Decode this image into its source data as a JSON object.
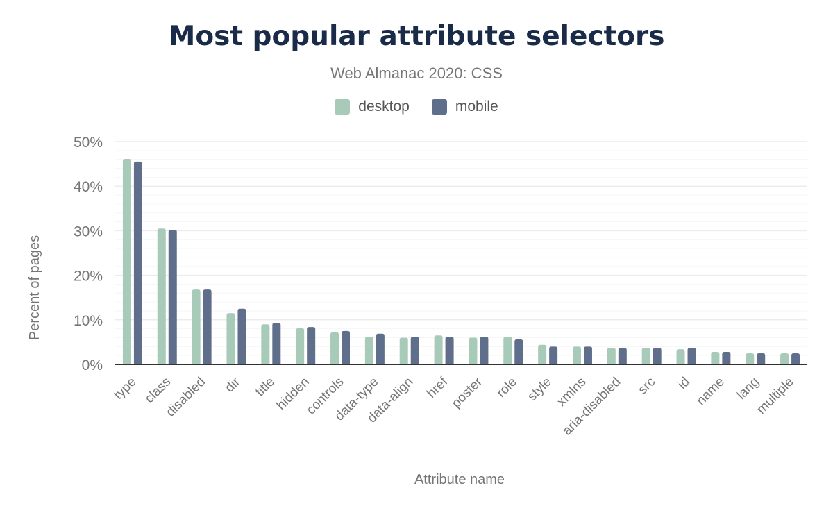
{
  "chart_data": {
    "type": "bar",
    "title": "Most popular attribute selectors",
    "subtitle": "Web Almanac 2020: CSS",
    "xlabel": "Attribute name",
    "ylabel": "Percent of pages",
    "ylim": [
      0,
      50
    ],
    "yticks": [
      "0%",
      "10%",
      "20%",
      "30%",
      "40%",
      "50%"
    ],
    "grid": true,
    "legend_position": "top",
    "categories": [
      "type",
      "class",
      "disabled",
      "dir",
      "title",
      "hidden",
      "controls",
      "data-type",
      "data-align",
      "href",
      "poster",
      "role",
      "style",
      "xmlns",
      "aria-disabled",
      "src",
      "id",
      "name",
      "lang",
      "multiple"
    ],
    "series": [
      {
        "name": "desktop",
        "color": "#a8cbb9",
        "values": [
          46.1,
          30.5,
          16.8,
          11.5,
          9.0,
          8.1,
          7.2,
          6.2,
          6.0,
          6.5,
          6.0,
          6.2,
          4.4,
          4.0,
          3.7,
          3.7,
          3.4,
          2.8,
          2.5,
          2.5
        ]
      },
      {
        "name": "mobile",
        "color": "#5f6f8b",
        "values": [
          45.5,
          30.2,
          16.8,
          12.5,
          9.3,
          8.4,
          7.5,
          6.9,
          6.2,
          6.2,
          6.2,
          5.6,
          4.0,
          4.0,
          3.7,
          3.7,
          3.7,
          2.8,
          2.5,
          2.5
        ]
      }
    ]
  }
}
